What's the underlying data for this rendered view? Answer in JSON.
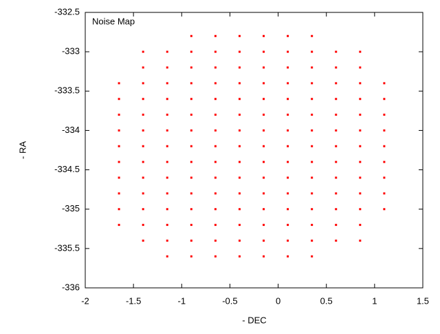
{
  "chart_data": {
    "type": "scatter",
    "xlabel": "- DEC",
    "ylabel": "- RA",
    "xlim": [
      -2,
      1.5
    ],
    "xticks": [
      -2,
      -1.5,
      -1,
      -0.5,
      0,
      0.5,
      1,
      1.5
    ],
    "ylim": [
      -336,
      -332.5
    ],
    "yticks": [
      -336,
      -335.5,
      -335,
      -334.5,
      -334,
      -333.5,
      -333,
      -332.5
    ],
    "legend": "top-left",
    "x": [
      -0.9,
      -0.65,
      -0.4,
      -0.15,
      0.1,
      0.35,
      -1.4,
      -1.15,
      -0.9,
      -0.65,
      -0.4,
      -0.15,
      0.1,
      0.35,
      0.6,
      0.85,
      -1.4,
      -1.15,
      -0.9,
      -0.65,
      -0.4,
      -0.15,
      0.1,
      0.35,
      0.6,
      0.85,
      -1.65,
      -1.4,
      -1.15,
      -0.9,
      -0.65,
      -0.4,
      -0.15,
      0.1,
      0.35,
      0.6,
      0.85,
      1.1,
      -1.65,
      -1.4,
      -1.15,
      -0.9,
      -0.65,
      -0.4,
      -0.15,
      0.1,
      0.35,
      0.6,
      0.85,
      1.1,
      -1.65,
      -1.4,
      -1.15,
      -0.9,
      -0.65,
      -0.4,
      -0.15,
      0.1,
      0.35,
      0.6,
      0.85,
      1.1,
      -1.65,
      -1.4,
      -1.15,
      -0.9,
      -0.65,
      -0.4,
      -0.15,
      0.1,
      0.35,
      0.6,
      0.85,
      1.1,
      -1.65,
      -1.4,
      -1.15,
      -0.9,
      -0.65,
      -0.4,
      -0.15,
      0.1,
      0.35,
      0.6,
      0.85,
      1.1,
      -1.65,
      -1.4,
      -1.15,
      -0.9,
      -0.65,
      -0.4,
      -0.15,
      0.1,
      0.35,
      0.6,
      0.85,
      1.1,
      -1.65,
      -1.4,
      -1.15,
      -0.9,
      -0.65,
      -0.4,
      -0.15,
      0.1,
      0.35,
      0.6,
      0.85,
      1.1,
      -1.65,
      -1.4,
      -1.15,
      -0.9,
      -0.65,
      -0.4,
      -0.15,
      0.1,
      0.35,
      0.6,
      0.85,
      1.1,
      -1.65,
      -1.4,
      -1.15,
      -0.9,
      -0.65,
      -0.4,
      -0.15,
      0.1,
      0.35,
      0.6,
      0.85,
      1.1,
      -1.65,
      -1.4,
      -1.15,
      -0.9,
      -0.65,
      -0.4,
      -0.15,
      0.1,
      0.35,
      0.6,
      0.85,
      -1.4,
      -1.15,
      -0.9,
      -0.65,
      -0.4,
      -0.15,
      0.1,
      0.35,
      0.6,
      0.85,
      -1.15,
      -0.9,
      -0.65,
      -0.4,
      -0.15,
      0.1,
      0.35
    ],
    "series": [
      {
        "name": "Noise Map",
        "color": "#ff0000",
        "values": [
          -332.8,
          -332.8,
          -332.8,
          -332.8,
          -332.8,
          -332.8,
          -333,
          -333,
          -333,
          -333,
          -333,
          -333,
          -333,
          -333,
          -333,
          -333,
          -333.2,
          -333.2,
          -333.2,
          -333.2,
          -333.2,
          -333.2,
          -333.2,
          -333.2,
          -333.2,
          -333.2,
          -333.4,
          -333.4,
          -333.4,
          -333.4,
          -333.4,
          -333.4,
          -333.4,
          -333.4,
          -333.4,
          -333.4,
          -333.4,
          -333.4,
          -333.6,
          -333.6,
          -333.6,
          -333.6,
          -333.6,
          -333.6,
          -333.6,
          -333.6,
          -333.6,
          -333.6,
          -333.6,
          -333.6,
          -333.8,
          -333.8,
          -333.8,
          -333.8,
          -333.8,
          -333.8,
          -333.8,
          -333.8,
          -333.8,
          -333.8,
          -333.8,
          -333.8,
          -334,
          -334,
          -334,
          -334,
          -334,
          -334,
          -334,
          -334,
          -334,
          -334,
          -334,
          -334,
          -334.2,
          -334.2,
          -334.2,
          -334.2,
          -334.2,
          -334.2,
          -334.2,
          -334.2,
          -334.2,
          -334.2,
          -334.2,
          -334.2,
          -334.4,
          -334.4,
          -334.4,
          -334.4,
          -334.4,
          -334.4,
          -334.4,
          -334.4,
          -334.4,
          -334.4,
          -334.4,
          -334.4,
          -334.6,
          -334.6,
          -334.6,
          -334.6,
          -334.6,
          -334.6,
          -334.6,
          -334.6,
          -334.6,
          -334.6,
          -334.6,
          -334.6,
          -334.8,
          -334.8,
          -334.8,
          -334.8,
          -334.8,
          -334.8,
          -334.8,
          -334.8,
          -334.8,
          -334.8,
          -334.8,
          -334.8,
          -335,
          -335,
          -335,
          -335,
          -335,
          -335,
          -335,
          -335,
          -335,
          -335,
          -335,
          -335,
          -335.2,
          -335.2,
          -335.2,
          -335.2,
          -335.2,
          -335.2,
          -335.2,
          -335.2,
          -335.2,
          -335.2,
          -335.2,
          -335.4,
          -335.4,
          -335.4,
          -335.4,
          -335.4,
          -335.4,
          -335.4,
          -335.4,
          -335.4,
          -335.4,
          -335.6,
          -335.6,
          -335.6,
          -335.6,
          -335.6,
          -335.6,
          -335.6
        ]
      }
    ]
  }
}
